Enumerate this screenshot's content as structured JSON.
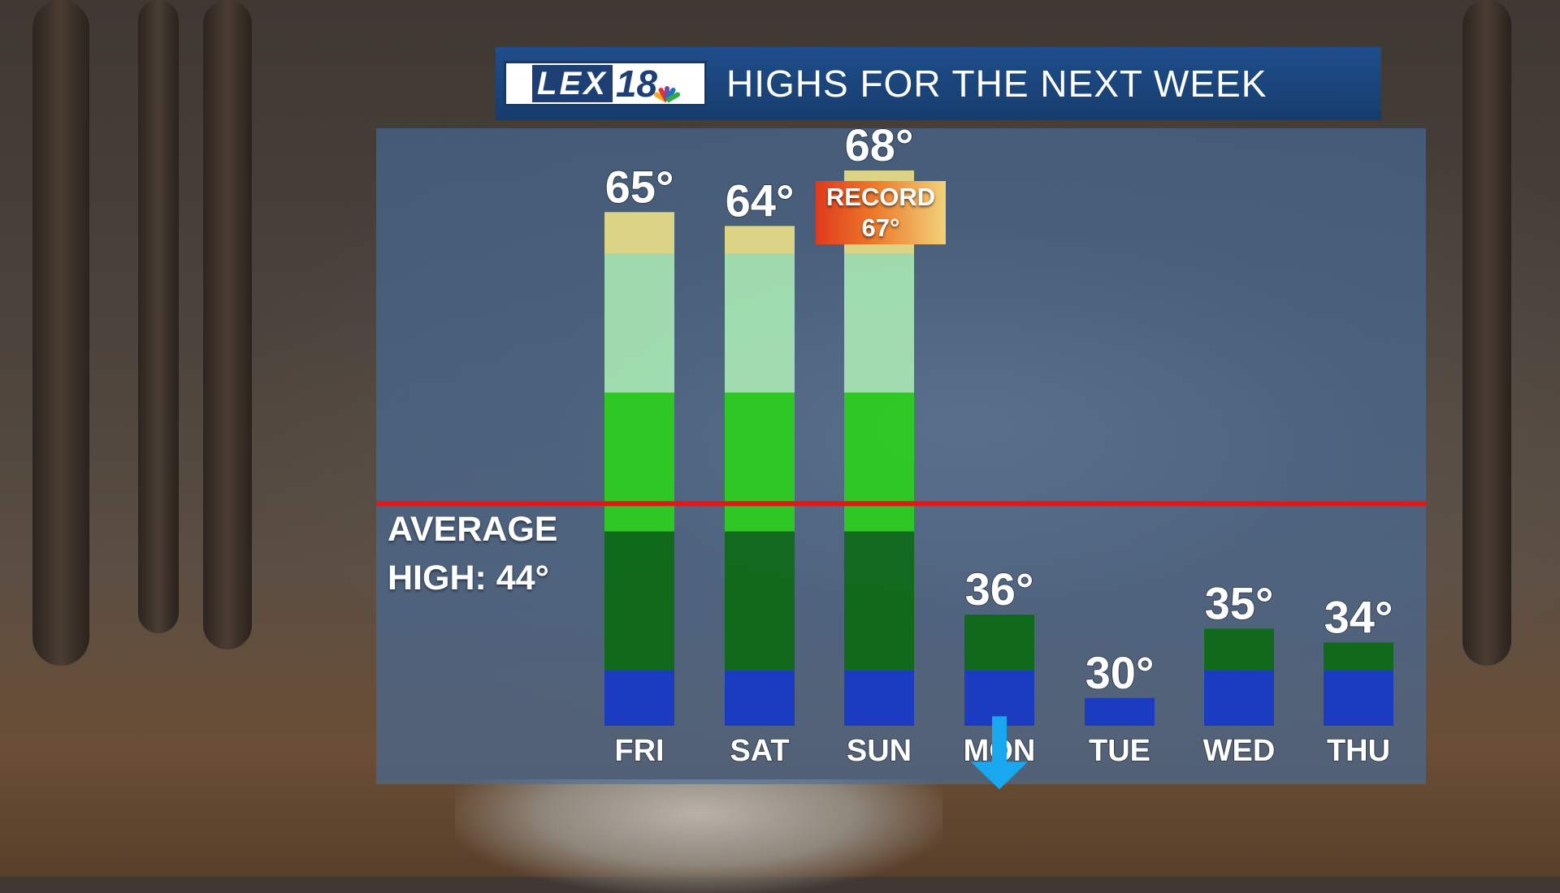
{
  "header": {
    "logo_text": "LEX",
    "logo_number": "18",
    "title": "HIGHS FOR THE NEXT WEEK"
  },
  "average": {
    "line1": "AVERAGE",
    "line2": "HIGH: 44°",
    "color": "#e01818"
  },
  "record": {
    "label": "RECORD",
    "value": "67°"
  },
  "colors": {
    "blue": "#1537c8",
    "dark_green": "#0a6a12",
    "green": "#2bd21a",
    "light_green": "#a8e9b4",
    "yellow": "#ece186",
    "arrow": "#19a8f0"
  },
  "chart_data": {
    "type": "bar",
    "title": "HIGHS FOR THE NEXT WEEK",
    "categories": [
      "FRI",
      "SAT",
      "SUN",
      "MON",
      "TUE",
      "WED",
      "THU"
    ],
    "values": [
      65,
      64,
      68,
      36,
      30,
      35,
      34
    ],
    "value_labels": [
      "65°",
      "64°",
      "68°",
      "36°",
      "30°",
      "35°",
      "34°"
    ],
    "unit": "°F",
    "ylim": [
      28,
      68
    ],
    "reference_line": {
      "label": "AVERAGE HIGH: 44°",
      "value": 44
    },
    "color_bands": [
      {
        "from": 28,
        "to": 32,
        "color": "blue"
      },
      {
        "from": 32,
        "to": 42,
        "color": "dark_green"
      },
      {
        "from": 42,
        "to": 52,
        "color": "green"
      },
      {
        "from": 52,
        "to": 62,
        "color": "light_green"
      },
      {
        "from": 62,
        "to": 70,
        "color": "yellow"
      }
    ],
    "annotations": [
      {
        "category": "SUN",
        "text": "RECORD 67°"
      },
      {
        "category": "MON",
        "icon": "down-arrow-icon"
      }
    ],
    "grid": false,
    "legend": "none"
  }
}
